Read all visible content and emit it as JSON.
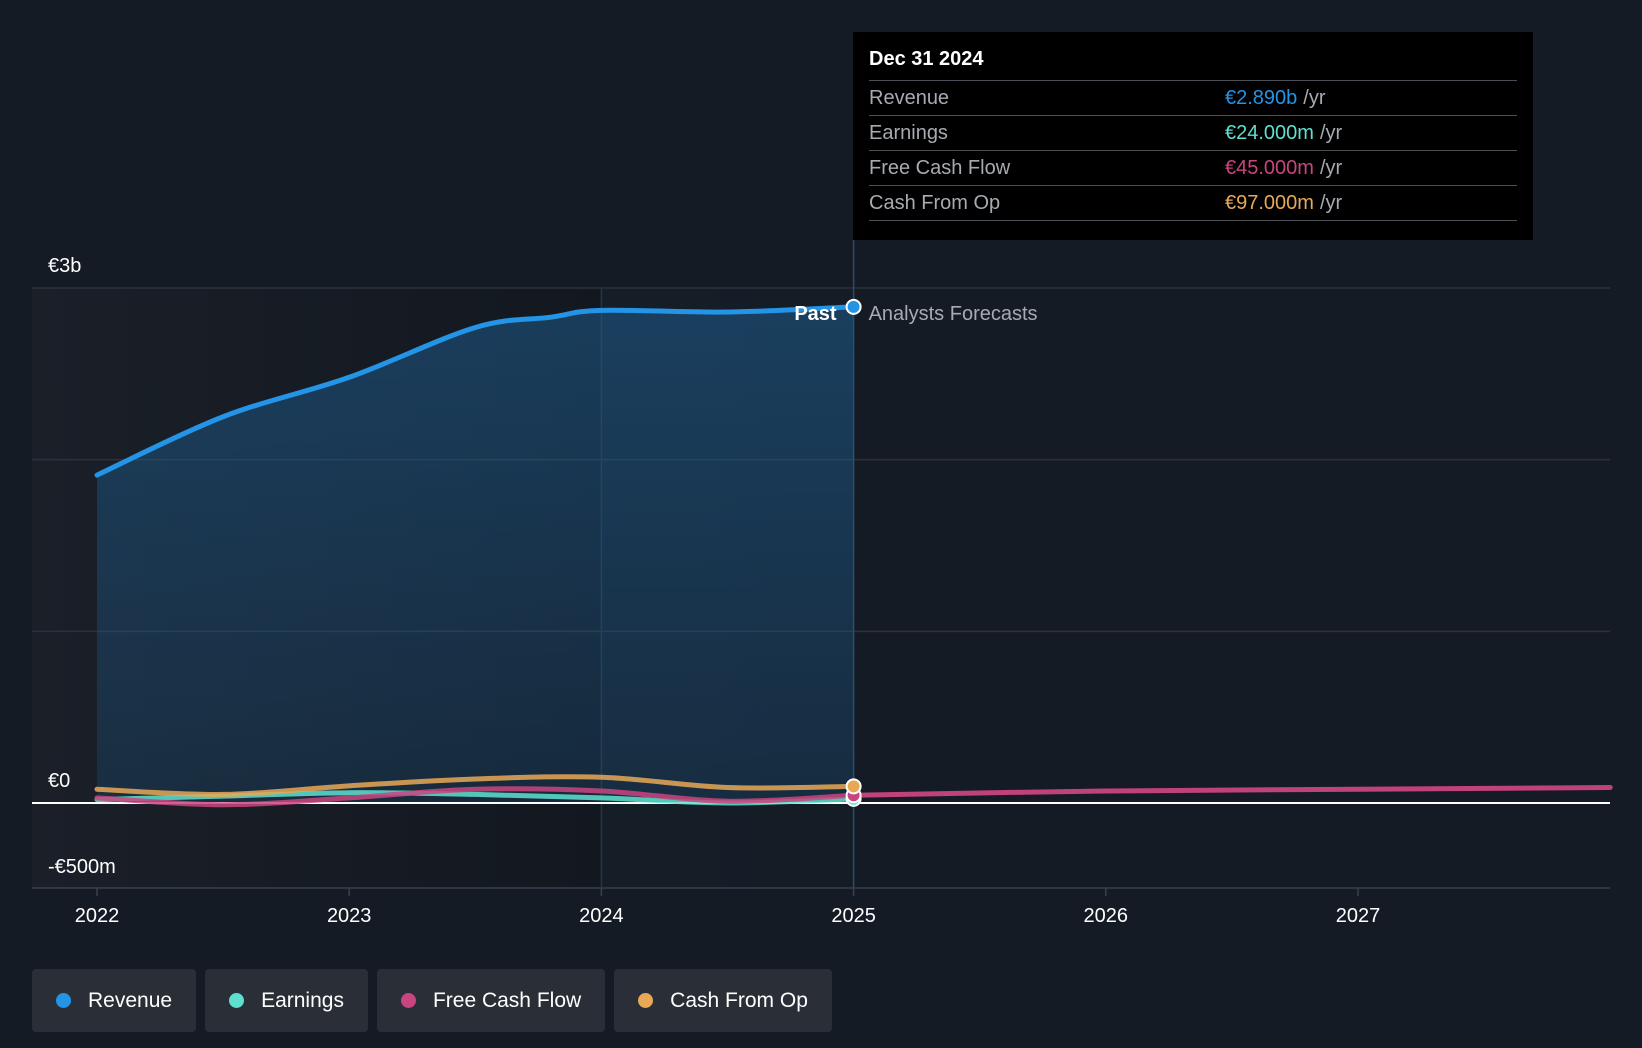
{
  "chart_data": {
    "type": "line",
    "x_ticks": [
      "2022",
      "2023",
      "2024",
      "2025",
      "2026",
      "2027"
    ],
    "y_ticks": [
      "€3b",
      "€0",
      "-€500m"
    ],
    "ylim": [
      -500,
      3000
    ],
    "y_unit": "€m",
    "divider_labels": {
      "past": "Past",
      "forecast": "Analysts Forecasts"
    },
    "series": [
      {
        "name": "Revenue",
        "color": "#2394e6",
        "points": [
          [
            2022.0,
            1910
          ],
          [
            2022.5,
            2250
          ],
          [
            2023.0,
            2480
          ],
          [
            2023.5,
            2770
          ],
          [
            2023.8,
            2830
          ],
          [
            2024.0,
            2870
          ],
          [
            2024.5,
            2860
          ],
          [
            2025.0,
            2890
          ]
        ]
      },
      {
        "name": "Earnings",
        "color": "#5fe0cf",
        "points": [
          [
            2022.0,
            20
          ],
          [
            2022.5,
            40
          ],
          [
            2023.0,
            60
          ],
          [
            2023.5,
            50
          ],
          [
            2024.0,
            30
          ],
          [
            2024.5,
            0
          ],
          [
            2025.0,
            24
          ]
        ]
      },
      {
        "name": "Free Cash Flow",
        "color": "#c9457f",
        "points": [
          [
            2022.0,
            30
          ],
          [
            2022.5,
            -10
          ],
          [
            2023.0,
            30
          ],
          [
            2023.5,
            80
          ],
          [
            2024.0,
            70
          ],
          [
            2024.5,
            10
          ],
          [
            2025.0,
            45
          ],
          [
            2026.0,
            70
          ],
          [
            2027.0,
            80
          ],
          [
            2028.0,
            90
          ]
        ]
      },
      {
        "name": "Cash From Op",
        "color": "#e8a956",
        "points": [
          [
            2022.0,
            80
          ],
          [
            2022.5,
            50
          ],
          [
            2023.0,
            100
          ],
          [
            2023.5,
            140
          ],
          [
            2024.0,
            150
          ],
          [
            2024.5,
            90
          ],
          [
            2025.0,
            97
          ]
        ]
      }
    ]
  },
  "tooltip": {
    "date": "Dec 31 2024",
    "rows": [
      {
        "label": "Revenue",
        "value": "€2.890b",
        "unit": "/yr",
        "color": "#2394e6"
      },
      {
        "label": "Earnings",
        "value": "€24.000m",
        "unit": "/yr",
        "color": "#5fe0cf"
      },
      {
        "label": "Free Cash Flow",
        "value": "€45.000m",
        "unit": "/yr",
        "color": "#c9457f"
      },
      {
        "label": "Cash From Op",
        "value": "€97.000m",
        "unit": "/yr",
        "color": "#e8a956"
      }
    ]
  },
  "legend": [
    {
      "label": "Revenue",
      "color": "#2394e6"
    },
    {
      "label": "Earnings",
      "color": "#5fe0cf"
    },
    {
      "label": "Free Cash Flow",
      "color": "#c9457f"
    },
    {
      "label": "Cash From Op",
      "color": "#e8a956"
    }
  ]
}
